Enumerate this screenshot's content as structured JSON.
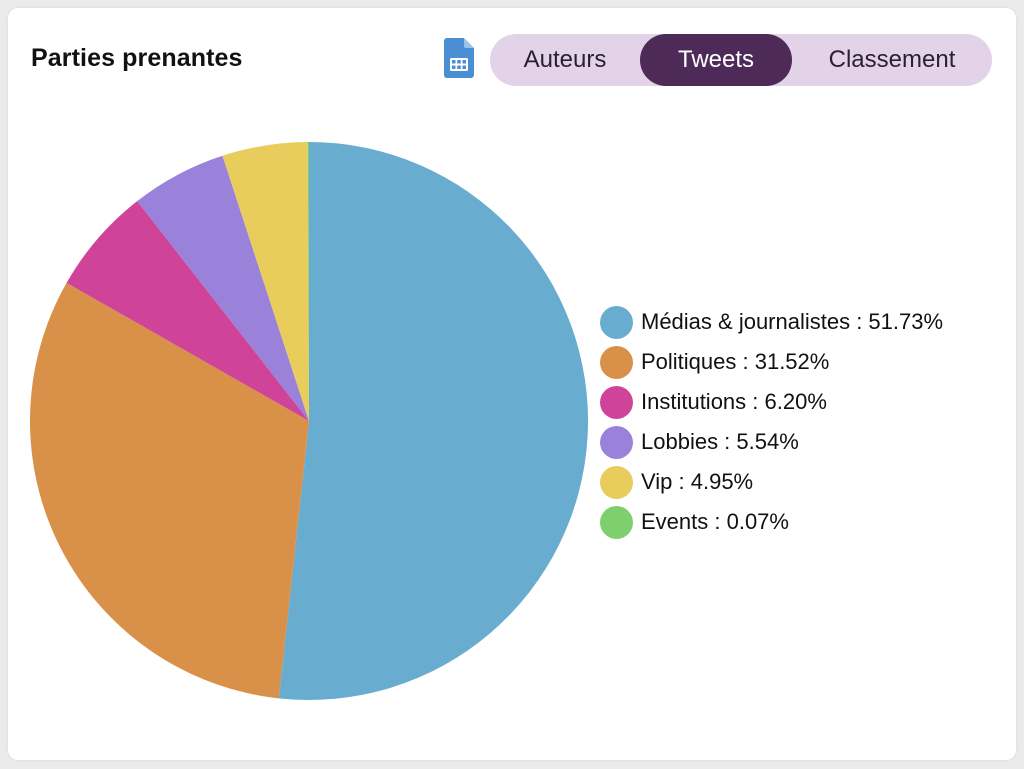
{
  "header": {
    "title": "Parties prenantes",
    "export_icon": "spreadsheet-file-icon"
  },
  "tabs": [
    {
      "label": "Auteurs",
      "active": false
    },
    {
      "label": "Tweets",
      "active": true
    },
    {
      "label": "Classement",
      "active": false
    }
  ],
  "chart_data": {
    "type": "pie",
    "categories": [
      "Médias & journalistes",
      "Politiques",
      "Institutions",
      "Lobbies",
      "Vip",
      "Events"
    ],
    "values": [
      51.73,
      31.52,
      6.2,
      5.54,
      4.95,
      0.07
    ],
    "unit": "%",
    "colors": [
      "#68adcf",
      "#d99049",
      "#cf4399",
      "#9a81da",
      "#e8cd5c",
      "#7dd06d"
    ],
    "legend": [
      "Médias & journalistes : 51.73%",
      "Politiques : 31.52%",
      "Institutions : 6.20%",
      "Lobbies : 5.54%",
      "Vip : 4.95%",
      "Events : 0.07%"
    ],
    "legend_position": "right",
    "start": "top",
    "direction": "clockwise"
  }
}
